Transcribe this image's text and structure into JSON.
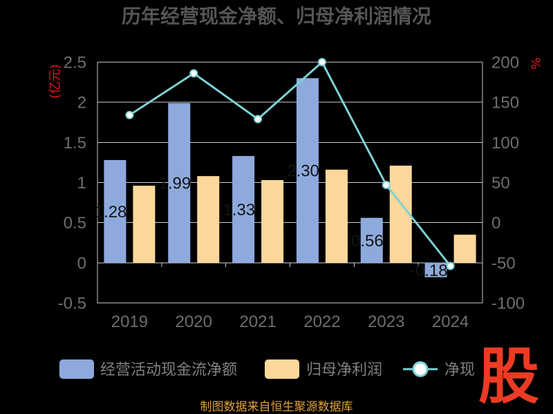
{
  "colors": {
    "background": "#000000",
    "grid": "#cccccc",
    "axis_name": "#e8141b",
    "tick_label": "#6e6e6e",
    "title": "#555555",
    "legend_text": "#808080",
    "footer": "#e0a23c",
    "logo": "#ec3b24",
    "data_label": "#141414"
  },
  "chart_data": {
    "type": "bar",
    "title": "历年经营现金净额、归母净利润情况",
    "categories": [
      "2019",
      "2020",
      "2021",
      "2022",
      "2023",
      "2024"
    ],
    "series": [
      {
        "name": "经营活动现金流净额",
        "type": "bar",
        "axis": "left",
        "color": "#8eaadc",
        "values": [
          1.28,
          1.99,
          1.33,
          2.3,
          0.56,
          -0.18
        ],
        "labels": [
          "1.28",
          "1.99",
          "1.33",
          "2.30",
          "0.56",
          "-0.18"
        ]
      },
      {
        "name": "归母净利润",
        "type": "bar",
        "axis": "left",
        "color": "#fed89a",
        "values": [
          0.96,
          1.08,
          1.03,
          1.16,
          1.21,
          0.35
        ]
      },
      {
        "name": "净现",
        "type": "line",
        "axis": "right",
        "color": "#7ed1d6",
        "values": [
          134,
          186,
          129,
          200,
          47,
          -54
        ]
      }
    ],
    "ylabel": "(亿元)",
    "y2label": "%",
    "ylim": [
      -0.5,
      2.5
    ],
    "y2lim": [
      -100,
      200
    ],
    "y_ticks": [
      "-0.5",
      "0",
      "0.5",
      "1",
      "1.5",
      "2",
      "2.5"
    ],
    "y2_ticks": [
      "-100",
      "-50",
      "0",
      "50",
      "100",
      "150",
      "200"
    ],
    "grid": true,
    "legend_position": "bottom"
  },
  "footer": "制图数据来自恒生聚源数据库",
  "logo": "股"
}
